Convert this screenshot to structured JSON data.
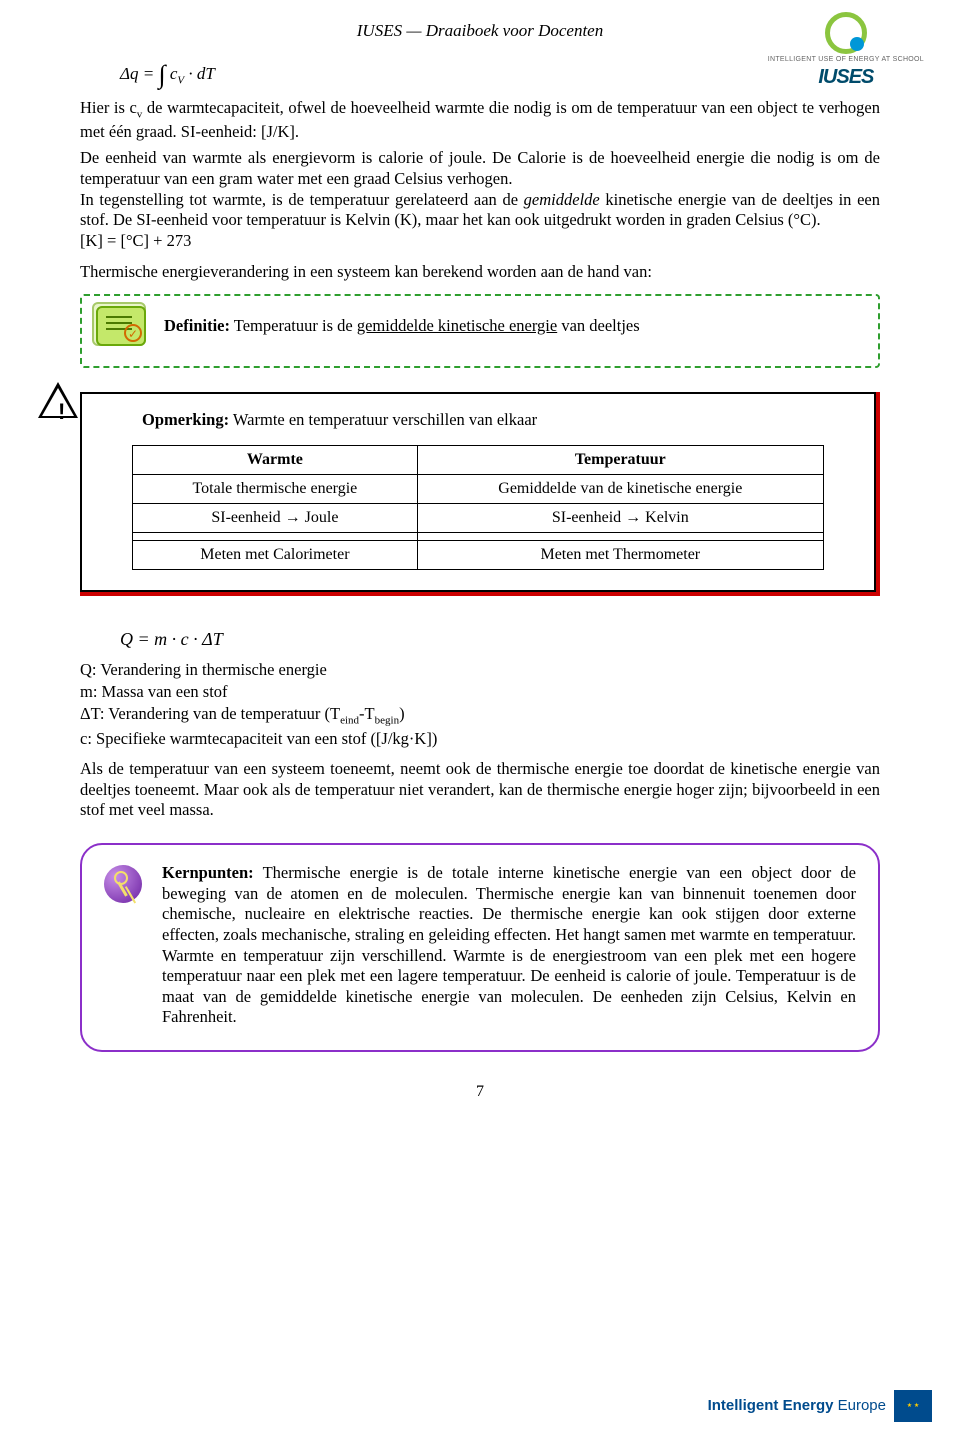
{
  "logo": {
    "tagline": "INTELLIGENT USE\nOF ENERGY AT SCHOOL",
    "brand": "IUSES"
  },
  "header": {
    "title": "IUSES — Draaiboek voor Docenten"
  },
  "formula1": "Δq = ∫ c_V · dT",
  "para1": "Hier is c_v de warmtecapaciteit, ofwel de hoeveelheid warmte die nodig is om de temperatuur van een object te verhogen met één graad. SI-eenheid: [J/K].",
  "para2_a": "De eenheid van warmte als energievorm is calorie of joule. De Calorie is de hoeveelheid energie die nodig is om de temperatuur van een gram water met een graad Celsius verhogen.",
  "para2_b": "In tegenstelling tot warmte, is de temperatuur gerelateerd aan de ",
  "para2_em": "gemiddelde",
  "para2_c": " kinetische energie van de deeltjes in een stof. De SI-eenheid voor temperatuur is Kelvin (K), maar het kan ook uitgedrukt worden in graden Celsius (°C).",
  "kelvin_eq": "[K] = [°C] + 273",
  "thermal_lead": "Thermische energieverandering in een systeem kan berekend worden aan de hand van:",
  "definition": {
    "label": "Definitie:",
    "text_a": " Temperatuur is de ",
    "text_u": "gemiddelde kinetische energie",
    "text_b": " van deeltjes"
  },
  "remark": {
    "label": "Opmerking:",
    "text": " Warmte en temperatuur verschillen van elkaar"
  },
  "table": {
    "headers": [
      "Warmte",
      "Temperatuur"
    ],
    "rows": [
      [
        "Totale thermische energie",
        "Gemiddelde van de kinetische energie"
      ],
      [
        "SI-eenheid → Joule",
        "SI-eenheid → Kelvin"
      ],
      [
        "Meten met Calorimeter",
        "Meten met Thermometer"
      ]
    ]
  },
  "formula2": "Q = m · c · ΔT",
  "defs": {
    "q": "Q: Verandering in thermische energie",
    "m": "m: Massa van een stof",
    "dt_a": "ΔT: Verandering van de temperatuur (T",
    "dt_sub1": "eind",
    "dt_mid": "-T",
    "dt_sub2": "begin",
    "dt_b": ")",
    "c": "c: Specifieke warmtecapaciteit van een stof ([J/kg·K])"
  },
  "para3": "Als de temperatuur van een systeem toeneemt, neemt ook de thermische energie toe doordat de kinetische energie van deeltjes toeneemt. Maar ook als de temperatuur niet verandert, kan de thermische energie hoger zijn; bijvoorbeeld in een stof met veel massa.",
  "keypoints": {
    "label": "Kernpunten:",
    "text": " Thermische energie is de totale interne kinetische energie van een object door de beweging van de atomen en de moleculen. Thermische energie kan van binnenuit toenemen door chemische, nucleaire en elektrische reacties. De thermische energie kan ook stijgen door externe effecten, zoals mechanische, straling en geleiding effecten. Het hangt samen met warmte en temperatuur. Warmte en temperatuur zijn verschillend. Warmte is de energiestroom van een plek met een hogere temperatuur naar een plek met een lagere temperatuur. De eenheid is calorie of joule. Temperatuur is de maat van de gemiddelde kinetische energie van moleculen. De eenheden zijn Celsius, Kelvin en Fahrenheit."
  },
  "page_number": "7",
  "footer": {
    "brand_a": "Intelligent Energy",
    "brand_b": "Europe"
  },
  "colors": {
    "def_border": "#2e9e2e",
    "remark_shadow": "#cc0000",
    "keypoints_border": "#8b2fc9",
    "eu_blue": "#004b8d"
  }
}
